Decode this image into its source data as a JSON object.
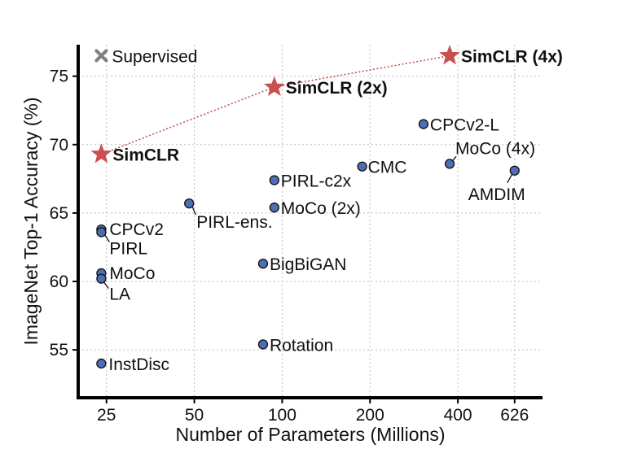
{
  "chart_data": {
    "type": "scatter",
    "title": "",
    "xlabel": "Number of Parameters (Millions)",
    "ylabel": "ImageNet Top-1 Accuracy (%)",
    "xscale": "log",
    "xlim": [
      20,
      780
    ],
    "ylim": [
      51.5,
      77.3
    ],
    "xticks": [
      25,
      50,
      100,
      200,
      400,
      626
    ],
    "xtick_labels": [
      "25",
      "50",
      "100",
      "200",
      "400",
      "626"
    ],
    "yticks": [
      55,
      60,
      65,
      70,
      75
    ],
    "ytick_labels": [
      "55",
      "60",
      "65",
      "70",
      "75"
    ],
    "grid": true,
    "colors": {
      "circle_fill": "#4c6fb2",
      "star_fill": "#c9504f",
      "cross_fill": "#7f7f7f",
      "line": "#c9504f"
    },
    "supervised": {
      "label": "Supervised",
      "x": 24,
      "y": 76.5
    },
    "simclr_series": {
      "name": "SimCLR",
      "points": [
        {
          "label": "SimCLR",
          "x": 24,
          "y": 69.3
        },
        {
          "label": "SimCLR (2x)",
          "x": 94,
          "y": 74.2
        },
        {
          "label": "SimCLR (4x)",
          "x": 375,
          "y": 76.5
        }
      ]
    },
    "points": [
      {
        "label": "CPCv2",
        "x": 24,
        "y": 63.8
      },
      {
        "label": "PIRL",
        "x": 24,
        "y": 63.6
      },
      {
        "label": "MoCo",
        "x": 24,
        "y": 60.6
      },
      {
        "label": "LA",
        "x": 24,
        "y": 60.2
      },
      {
        "label": "InstDisc",
        "x": 24,
        "y": 54.0
      },
      {
        "label": "PIRL-ens.",
        "x": 48,
        "y": 65.7
      },
      {
        "label": "PIRL-c2x",
        "x": 94,
        "y": 67.4
      },
      {
        "label": "MoCo (2x)",
        "x": 94,
        "y": 65.4
      },
      {
        "label": "BigBiGAN",
        "x": 86,
        "y": 61.3
      },
      {
        "label": "Rotation",
        "x": 86,
        "y": 55.4
      },
      {
        "label": "CMC",
        "x": 188,
        "y": 68.4
      },
      {
        "label": "CPCv2-L",
        "x": 305,
        "y": 71.5
      },
      {
        "label": "MoCo (4x)",
        "x": 375,
        "y": 68.6
      },
      {
        "label": "AMDIM",
        "x": 626,
        "y": 68.1
      }
    ]
  }
}
